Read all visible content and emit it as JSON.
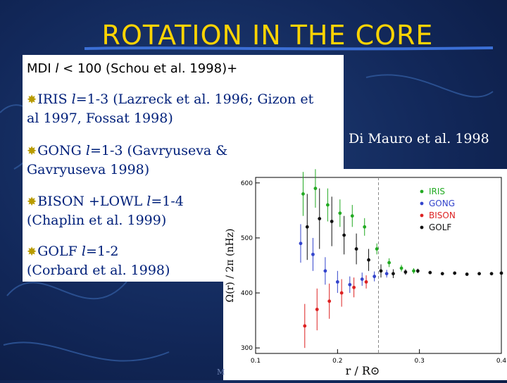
{
  "slide": {
    "title": "ROTATION IN THE CORE",
    "footer_fragment": "M",
    "credit": "Di Mauro et al. 1998",
    "colors": {
      "title": "#ffd400",
      "text": "#00207a",
      "bullet": "#b89b00"
    }
  },
  "lines": {
    "mdi_a": "MDI ",
    "mdi_l": "l",
    "mdi_b": " < 100 (Schou et al. 1998)+",
    "iris_a": "IRIS ",
    "iris_l": "l",
    "iris_b": "=1-3 (Lazreck et al. 1996; Gizon et",
    "iris_c": "al 1997, Fossat 1998)",
    "gong_a": "GONG ",
    "gong_l": "l",
    "gong_b": "=1-3 (Gavryuseva &",
    "gong_c": "Gavryuseva 1998)",
    "bison_a": "BISON +LOWL ",
    "bison_l": "l",
    "bison_b": "=1-4",
    "bison_c": "(Chaplin et al. 1999)",
    "golf_a": "GOLF ",
    "golf_l": "l",
    "golf_b": "=1-2",
    "golf_c": "(Corbard et al. 1998)",
    "bullet_icon": "sunburst-bullet-icon"
  },
  "chart_data": {
    "type": "scatter",
    "xlabel": "r / R⊙",
    "ylabel": "Ω(r) / 2π  (nHz)",
    "xlim": [
      0.1,
      0.4
    ],
    "ylim": [
      290,
      610
    ],
    "xticks": [
      "0.1",
      "0.2",
      "0.3",
      "0.4"
    ],
    "yticks": [
      "300",
      "400",
      "500",
      "600"
    ],
    "marker_line_x": 0.25,
    "legend_position": "top-right",
    "series": [
      {
        "name": "IRIS",
        "color": "#22aa22",
        "x": [
          0.158,
          0.173,
          0.188,
          0.203,
          0.218,
          0.233,
          0.248,
          0.263,
          0.278,
          0.293
        ],
        "y": [
          580,
          590,
          560,
          545,
          540,
          520,
          480,
          455,
          445,
          440
        ],
        "err": [
          40,
          35,
          30,
          25,
          20,
          16,
          10,
          8,
          6,
          5
        ]
      },
      {
        "name": "GONG",
        "color": "#3344cc",
        "x": [
          0.155,
          0.17,
          0.185,
          0.2,
          0.215,
          0.23,
          0.245,
          0.26
        ],
        "y": [
          490,
          470,
          440,
          420,
          415,
          425,
          430,
          435
        ],
        "err": [
          35,
          30,
          25,
          20,
          15,
          12,
          9,
          7
        ]
      },
      {
        "name": "BISON",
        "color": "#dd2222",
        "x": [
          0.16,
          0.175,
          0.19,
          0.205,
          0.22,
          0.235
        ],
        "y": [
          340,
          370,
          385,
          400,
          410,
          420
        ],
        "err": [
          40,
          38,
          32,
          25,
          18,
          12
        ]
      },
      {
        "name": "GOLF",
        "color": "#111111",
        "x": [
          0.163,
          0.178,
          0.193,
          0.208,
          0.223,
          0.238,
          0.253,
          0.268,
          0.283,
          0.298,
          0.313,
          0.328,
          0.343,
          0.358,
          0.373,
          0.388,
          0.4
        ],
        "y": [
          520,
          535,
          530,
          505,
          480,
          460,
          440,
          435,
          438,
          440,
          437,
          435,
          436,
          434,
          435,
          435,
          436
        ],
        "err": [
          60,
          55,
          45,
          35,
          28,
          20,
          12,
          8,
          5,
          4,
          3,
          3,
          3,
          3,
          3,
          3,
          3
        ]
      }
    ]
  }
}
